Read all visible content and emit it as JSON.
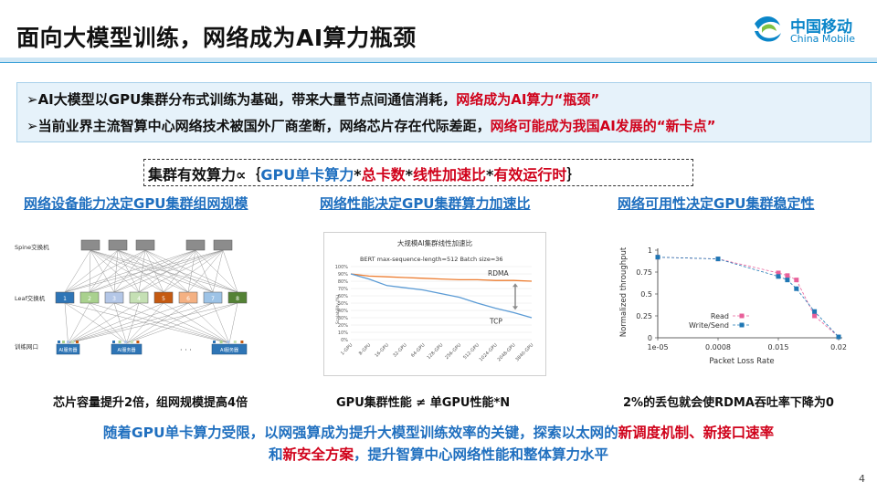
{
  "title": "面向大模型训练，网络成为AI算力瓶颈",
  "logo": {
    "cn": "中国移动",
    "en": "China Mobile"
  },
  "bullets": [
    {
      "marker": "➢",
      "text": "AI大模型以GPU集群分布式训练为基础，带来大量节点间通信消耗，",
      "highlight": "网络成为AI算力“瓶颈”"
    },
    {
      "marker": "➢",
      "text": "当前业界主流智算中心网络技术被国外厂商垄断，网络芯片存在代际差距，",
      "highlight": "网络可能成为我国AI发展的“新卡点”"
    }
  ],
  "formula": {
    "prefix": "集群有效算力∝｛",
    "p1": "GPU单卡算力",
    "s1": "*",
    "p2": "总卡数",
    "s2": "*",
    "p3": "线性加速比",
    "s3": "*",
    "p4": "有效运行时",
    "suffix": "｝"
  },
  "sections": {
    "topology": {
      "heading": "网络设备能力决定GPU集群组网规模",
      "caption": "芯片容量提升2倍，组网规模提高4倍",
      "spine_label": "Spine交换机",
      "leaf_label": "Leaf交换机",
      "server_label": "训练网口",
      "dots": "· · ·",
      "leaf_numbers": [
        "1",
        "2",
        "3",
        "4",
        "5",
        "6",
        "7",
        "8"
      ],
      "server_box": "AI服务器",
      "colors": {
        "spine": "#8c8c8c",
        "leaf": [
          "#2e75b6",
          "#a9d18e",
          "#b4c7e7",
          "#c5e0b4",
          "#c55a11",
          "#f4b183",
          "#9dc3e6",
          "#548235"
        ]
      }
    },
    "linearity": {
      "heading": "网络性能决定GPU集群算力加速比",
      "caption": "GPU集群性能 ≠ 单GPU性能*N"
    },
    "stability": {
      "heading": "网络可用性决定GPU集群稳定性",
      "caption": "2%的丢包就会使RDMA吞吐率下降为0"
    }
  },
  "summary": {
    "line1_a": "随着GPU单卡算力受限，以网强算成为提升大模型训练效率的关键，探索以太网的",
    "line1_b": "新调度机制、新接口速率",
    "line2_a": "和",
    "line2_b": "新安全方案",
    "line2_c": "，提升智算中心网络性能和整体算力水平"
  },
  "page_number": "4",
  "chart_data": [
    {
      "type": "line",
      "title": "大规模AI集群线性加速比",
      "subtitle": "BERT max-sequence-length=512 Batch size=36",
      "xlabel": "",
      "ylabel": "Scalability (%)",
      "categories": [
        "1-GPU",
        "8-GPU",
        "16-GPU",
        "32-GPU",
        "64-GPU",
        "128-GPU",
        "256-GPU",
        "512-GPU",
        "1024-GPU",
        "2048-GPU",
        "3840-GPU"
      ],
      "yticks": [
        "100%",
        "90%",
        "80%",
        "70%",
        "60%",
        "50%",
        "40%",
        "30%",
        "20%",
        "10%",
        "0%"
      ],
      "ylim": [
        0,
        100
      ],
      "series": [
        {
          "name": "RDMA",
          "values": [
            90,
            87,
            86,
            85,
            84,
            83,
            82,
            82,
            81,
            81,
            80
          ],
          "color": "#ed7d31"
        },
        {
          "name": "TCP",
          "values": [
            90,
            83,
            74,
            71,
            68,
            63,
            58,
            50,
            43,
            37,
            30
          ],
          "color": "#5b9bd5"
        }
      ]
    },
    {
      "type": "scatter",
      "xlabel": "Packet Loss Rate",
      "ylabel": "Normalized throughput",
      "xticks": [
        "1e-05",
        "0.0008",
        "0.015",
        "0.02"
      ],
      "yticks": [
        "1",
        "0.75",
        "0.5",
        "0.25",
        "0"
      ],
      "ylim": [
        0,
        1
      ],
      "legend": "lower-left",
      "series": [
        {
          "name": "Read",
          "color": "#e8609a",
          "points": [
            [
              0,
              0.92
            ],
            [
              1,
              0.9
            ],
            [
              2,
              0.74
            ],
            [
              2.15,
              0.71
            ],
            [
              2.3,
              0.66
            ],
            [
              2.6,
              0.25
            ],
            [
              3,
              0.01
            ]
          ]
        },
        {
          "name": "Write/Send",
          "color": "#1f77b4",
          "points": [
            [
              0,
              0.92
            ],
            [
              1,
              0.9
            ],
            [
              2,
              0.7
            ],
            [
              2.15,
              0.66
            ],
            [
              2.3,
              0.56
            ],
            [
              2.6,
              0.3
            ],
            [
              3,
              0.01
            ]
          ]
        }
      ]
    }
  ]
}
